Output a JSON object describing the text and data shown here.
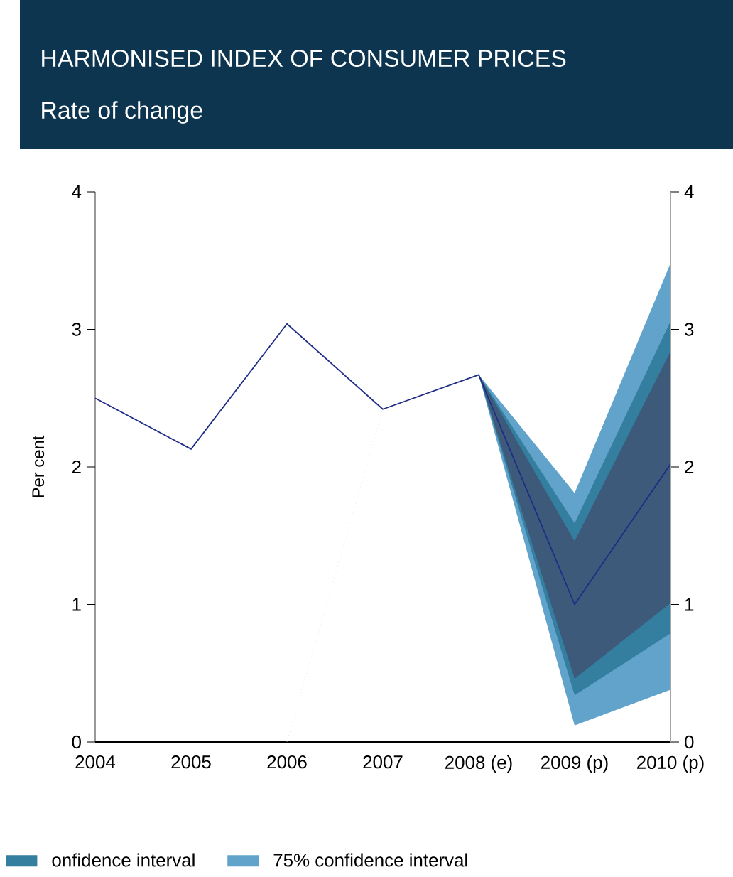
{
  "chart_data": {
    "type": "line",
    "title": "HARMONISED INDEX OF CONSUMER PRICES",
    "subtitle": "Rate of change",
    "ylabel": "Per cent",
    "categories": [
      "2004",
      "2005",
      "2006",
      "2007",
      "2008 (e)",
      "2009 (p)",
      "2010 (p)"
    ],
    "ylim": [
      0,
      4
    ],
    "yticks": [
      0,
      1,
      2,
      3,
      4
    ],
    "y2lim": [
      0,
      4
    ],
    "y2ticks": [
      0,
      1,
      2,
      3,
      4
    ],
    "legend": "bottom",
    "series": [
      {
        "name": "75% confidence interval",
        "color": "#62a3cc",
        "values": [
          null,
          null,
          null,
          null,
          null,
          null,
          null
        ],
        "lower": [
          null,
          null,
          null,
          null,
          2.67,
          0.12,
          0.38
        ],
        "upper": [
          null,
          null,
          null,
          null,
          2.67,
          1.81,
          3.48
        ]
      },
      {
        "name": "onfidence interval",
        "color": "#347ea0",
        "values": [
          null,
          null,
          null,
          null,
          null,
          null,
          null
        ],
        "lower": [
          null,
          null,
          null,
          null,
          2.67,
          0.34,
          0.79
        ],
        "upper": [
          null,
          null,
          null,
          null,
          2.67,
          1.59,
          3.06
        ]
      },
      {
        "color": "#3d5a7a",
        "values": [
          null,
          null,
          null,
          null,
          null,
          null,
          null
        ],
        "lower": [
          null,
          null,
          null,
          null,
          2.67,
          0.46,
          1.01
        ],
        "upper": [
          null,
          null,
          null,
          null,
          2.67,
          1.46,
          2.84
        ]
      },
      {
        "color": "#1f2d86",
        "values": [
          2.5,
          2.13,
          3.04,
          2.42,
          2.67,
          1.0,
          2.02
        ]
      },
      {
        "color": "#d5dceb",
        "line_style": "dotted",
        "values": [
          null,
          null,
          0,
          2.42,
          null,
          null,
          null
        ]
      }
    ]
  }
}
